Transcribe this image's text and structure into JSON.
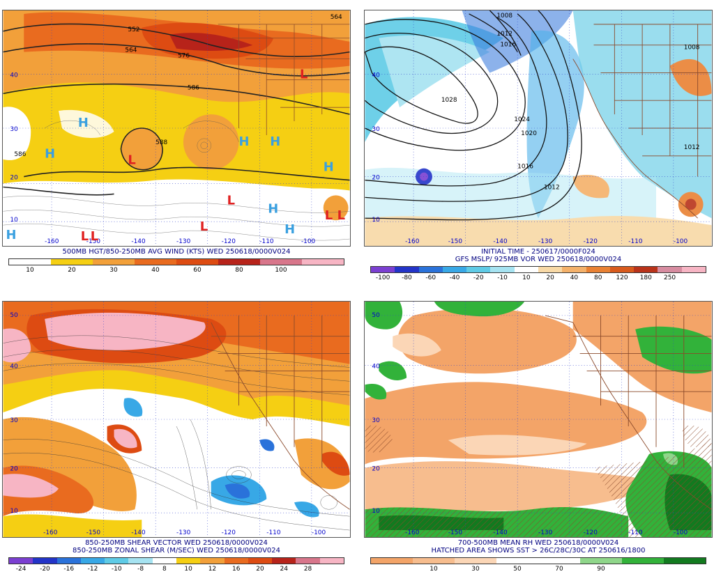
{
  "panels": [
    {
      "id": "p1",
      "caption": "500MB HGT/850-250MB AVG WIND (KTS) WED 250618/0000V024",
      "colorbar": {
        "colors": [
          "#ffffff",
          "#f5cf13",
          "#f2a03a",
          "#e96b1f",
          "#dd4b12",
          "#b7231a",
          "#d8768b",
          "#f7b5c4"
        ],
        "labels": [
          "10",
          "20",
          "30",
          "40",
          "60",
          "80",
          "100"
        ]
      },
      "contour_labels": [
        "564",
        "552",
        "564",
        "576",
        "586",
        "586",
        "588"
      ],
      "lat_labels": [
        "40",
        "30",
        "20",
        "10"
      ],
      "lon_labels": [
        "-160",
        "-150",
        "-140",
        "-130",
        "-120",
        "-110",
        "-100"
      ],
      "highs": [
        "H",
        "H",
        "H",
        "H",
        "H",
        "H",
        "H",
        "H"
      ],
      "lows": [
        "L",
        "L",
        "L",
        "L",
        "L",
        "L",
        "L",
        "L"
      ]
    },
    {
      "id": "p2",
      "caption": "INITIAL TIME - 250617/0000F024\nGFS MSLP/ 925MB VOR WED 250618/0000V024",
      "colorbar": {
        "colors": [
          "#7b3fd1",
          "#2334c8",
          "#2a72da",
          "#38a8e6",
          "#5fcbe6",
          "#a6e3f1",
          "#ffffff",
          "#f8d9a6",
          "#f4b16a",
          "#e98133",
          "#d85a1c",
          "#b9331a",
          "#d78ca0",
          "#f7b5c4"
        ],
        "labels": [
          "-100",
          "-80",
          "-60",
          "-40",
          "-20",
          "-10",
          "10",
          "20",
          "40",
          "80",
          "120",
          "180",
          "250"
        ]
      },
      "contour_labels": [
        "1008",
        "1012",
        "1016",
        "1028",
        "1024",
        "1020",
        "1016",
        "1012",
        "1012",
        "1008"
      ],
      "lat_labels": [
        "40",
        "30",
        "20",
        "10"
      ],
      "lon_labels": [
        "-160",
        "-150",
        "-140",
        "-130",
        "-120",
        "-110",
        "-100"
      ]
    },
    {
      "id": "p3",
      "caption": "850-250MB SHEAR VECTOR WED 250618/0000V024\n850-250MB ZONAL SHEAR (M/SEC) WED 250618/0000V024",
      "colorbar": {
        "colors": [
          "#7b3fd1",
          "#2334c8",
          "#2a72da",
          "#38a8e6",
          "#5fcbe6",
          "#a6e3f1",
          "#ffffff",
          "#f5cf13",
          "#f2a03a",
          "#e96b1f",
          "#dd4b12",
          "#b7231a",
          "#d8768b",
          "#f7b5c4"
        ],
        "labels": [
          "-24",
          "-20",
          "-16",
          "-12",
          "-10",
          "-8",
          "8",
          "10",
          "12",
          "16",
          "20",
          "24",
          "28"
        ]
      },
      "lat_labels": [
        "50",
        "40",
        "30",
        "20",
        "10"
      ],
      "lon_labels": [
        "-160",
        "-150",
        "-140",
        "-130",
        "-120",
        "-110",
        "-100"
      ]
    },
    {
      "id": "p4",
      "caption": "700-500MB MEAN RH WED 250618/0000V024\nHATCHED AREA SHOWS SST > 26C/28C/30C AT 250616/1800",
      "colorbar": {
        "colors": [
          "#f3a468",
          "#f7bd8e",
          "#fbd6b6",
          "#ffffff",
          "#ffffff",
          "#8fd68a",
          "#32b23a",
          "#127a1f"
        ],
        "labels": [
          "10",
          "30",
          "50",
          "70",
          "90"
        ]
      },
      "lat_labels": [
        "50",
        "40",
        "30",
        "20",
        "10"
      ],
      "lon_labels": [
        "-160",
        "-150",
        "-140",
        "-130",
        "-120",
        "-110",
        "-100"
      ]
    }
  ]
}
